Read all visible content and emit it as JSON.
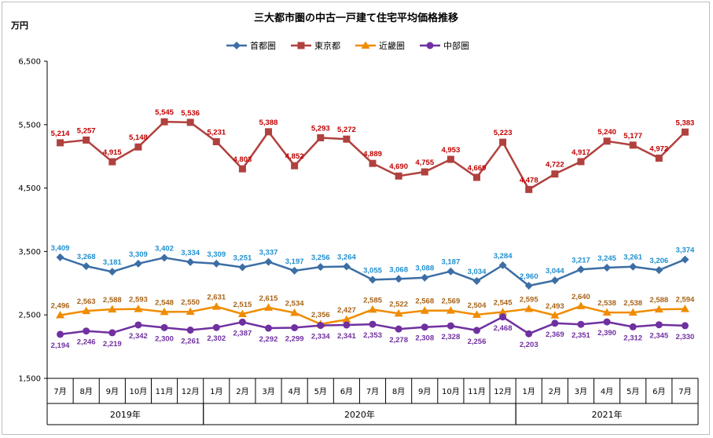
{
  "chart_data": {
    "type": "line",
    "title": "三大都市圏の中古一戸建て住宅平均価格推移",
    "ylabel": "万円",
    "ylim": [
      1500,
      6500
    ],
    "yticks": [
      "1,500",
      "2,500",
      "3,500",
      "4,500",
      "5,500",
      "6,500"
    ],
    "ytick_values": [
      1500,
      2500,
      3500,
      4500,
      5500,
      6500
    ],
    "categories": [
      "7月",
      "8月",
      "9月",
      "10月",
      "11月",
      "12月",
      "1月",
      "2月",
      "3月",
      "4月",
      "5月",
      "6月",
      "7月",
      "8月",
      "9月",
      "10月",
      "11月",
      "12月",
      "1月",
      "2月",
      "3月",
      "4月",
      "5月",
      "6月",
      "7月"
    ],
    "years": [
      {
        "label": "2019年",
        "start": 0,
        "end": 5
      },
      {
        "label": "2020年",
        "start": 6,
        "end": 17
      },
      {
        "label": "2021年",
        "start": 18,
        "end": 24
      }
    ],
    "legend_position": "top",
    "grid": false,
    "series": [
      {
        "name": "首都圏",
        "color": "#3c6ea5",
        "label_color": "#1f8fd0",
        "marker": "diamond",
        "label_pos": "above",
        "values": [
          3409,
          3268,
          3181,
          3309,
          3402,
          3334,
          3309,
          3251,
          3337,
          3197,
          3256,
          3264,
          3055,
          3068,
          3088,
          3187,
          3034,
          3284,
          2960,
          3044,
          3217,
          3245,
          3261,
          3206,
          3374
        ]
      },
      {
        "name": "東京都",
        "color": "#b0413e",
        "label_color": "#c00000",
        "marker": "square",
        "label_pos": "above",
        "values": [
          5214,
          5257,
          4915,
          5148,
          5545,
          5536,
          5231,
          4803,
          5388,
          4852,
          5293,
          5272,
          4889,
          4690,
          4755,
          4953,
          4669,
          5223,
          4478,
          4722,
          4917,
          5240,
          5177,
          4972,
          5383
        ]
      },
      {
        "name": "近畿圏",
        "color": "#f08c00",
        "label_color": "#a86418",
        "marker": "triangle",
        "label_pos": "above",
        "values": [
          2496,
          2563,
          2588,
          2593,
          2548,
          2550,
          2631,
          2515,
          2615,
          2534,
          2356,
          2427,
          2585,
          2522,
          2568,
          2569,
          2504,
          2545,
          2595,
          2493,
          2640,
          2538,
          2538,
          2588,
          2594
        ]
      },
      {
        "name": "中部圏",
        "color": "#7030a0",
        "label_color": "#7030a0",
        "marker": "circle",
        "label_pos": "below",
        "values": [
          2194,
          2246,
          2219,
          2342,
          2300,
          2261,
          2302,
          2387,
          2292,
          2299,
          2334,
          2341,
          2353,
          2278,
          2308,
          2328,
          2256,
          2468,
          2203,
          2369,
          2351,
          2390,
          2312,
          2345,
          2330
        ]
      }
    ]
  }
}
